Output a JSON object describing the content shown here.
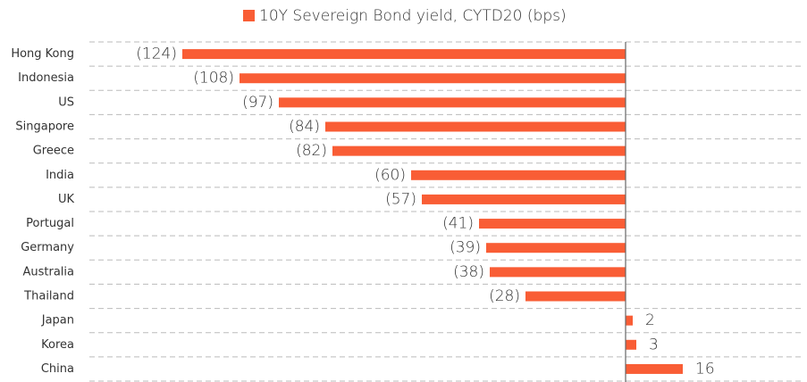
{
  "chart_data": {
    "type": "bar",
    "orientation": "horizontal",
    "categories": [
      "Hong Kong",
      "Indonesia",
      "US",
      "Singapore",
      "Greece",
      "India",
      "UK",
      "Portugal",
      "Germany",
      "Australia",
      "Thailand",
      "Japan",
      "Korea",
      "China"
    ],
    "series": [
      {
        "name": "10Y Severeign Bond yield, CYTD20 (bps)",
        "color": "#f95d35",
        "values": [
          -124,
          -108,
          -97,
          -84,
          -82,
          -60,
          -57,
          -41,
          -39,
          -38,
          -28,
          2,
          3,
          16
        ],
        "value_labels": [
          "(124)",
          "(108)",
          "(97)",
          "(84)",
          "(82)",
          "(60)",
          "(57)",
          "(41)",
          "(39)",
          "(38)",
          "(28)",
          "2",
          "3",
          "16"
        ]
      }
    ],
    "xlim": [
      -150,
      50
    ],
    "grid": true,
    "legend": "top"
  }
}
